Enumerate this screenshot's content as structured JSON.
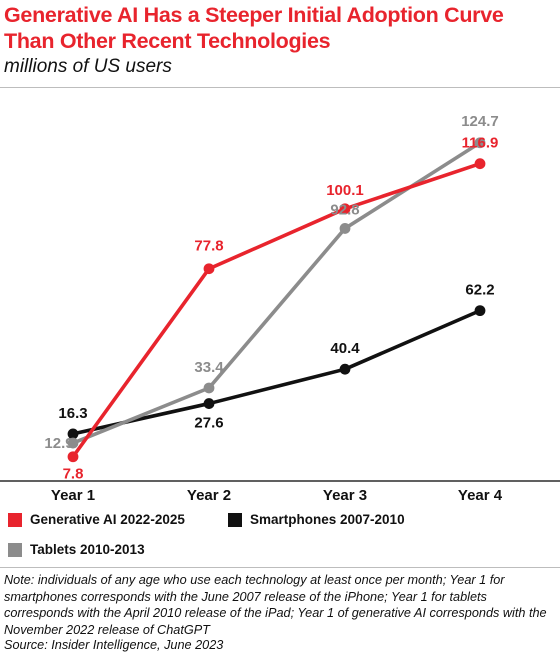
{
  "title": "Generative AI Has a Steeper Initial Adoption Curve Than Other Recent Technologies",
  "subtitle": "millions of US users",
  "note": "Note: individuals of any age who use each technology at least once per month; Year 1 for smartphones corresponds with the June 2007 release of the iPhone; Year 1 for tablets corresponds with the April 2010 release of the iPad; Year 1 of generative AI corresponds with the November 2022 release of ChatGPT",
  "source": "Source: Insider Intelligence, June 2023",
  "colors": {
    "generative_ai": "#e8242d",
    "smartphones": "#111111",
    "tablets": "#8c8c8c"
  },
  "chart_data": {
    "type": "line",
    "categories": [
      "Year 1",
      "Year 2",
      "Year 3",
      "Year 4"
    ],
    "ylim": [
      0,
      130
    ],
    "grid": false,
    "legend_position": "bottom",
    "series": [
      {
        "name": "Generative AI 2022-2025",
        "color": "#e8242d",
        "values": [
          7.8,
          77.8,
          100.1,
          116.9
        ],
        "labels": [
          "7.8",
          "77.8",
          "100.1",
          "116.9"
        ]
      },
      {
        "name": "Smartphones 2007-2010",
        "color": "#111111",
        "values": [
          16.3,
          27.6,
          40.4,
          62.2
        ],
        "labels": [
          "16.3",
          "27.6",
          "40.4",
          "62.2"
        ]
      },
      {
        "name": "Tablets 2010-2013",
        "color": "#8c8c8c",
        "values": [
          12.9,
          33.4,
          92.8,
          124.7
        ],
        "labels": [
          "12.9",
          "33.4",
          "92.8",
          "124.7"
        ]
      }
    ]
  }
}
